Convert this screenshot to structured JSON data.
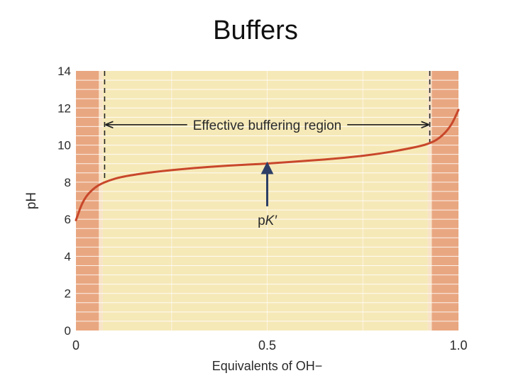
{
  "slide": {
    "title": "Buffers"
  },
  "chart_data": {
    "type": "line",
    "title": "",
    "xlabel": "Equivalents of OH−",
    "ylabel": "pH",
    "xlim": [
      0,
      1
    ],
    "ylim": [
      0,
      14
    ],
    "x_ticks": [
      0,
      0.5,
      1
    ],
    "x_tick_labels": [
      "0",
      "0.5",
      "1.0"
    ],
    "y_ticks": [
      0,
      2,
      4,
      6,
      8,
      10,
      12,
      14
    ],
    "y_tick_labels": [
      "0",
      "2",
      "4",
      "6",
      "8",
      "10",
      "12",
      "14"
    ],
    "grid": "horizontal",
    "series": [
      {
        "x": [
          0,
          0.02,
          0.05,
          0.08,
          0.12,
          0.2,
          0.3,
          0.4,
          0.5,
          0.6,
          0.7,
          0.8,
          0.88,
          0.92,
          0.95,
          0.98,
          1.0
        ],
        "y": [
          5.95,
          7.1,
          7.75,
          8.05,
          8.3,
          8.55,
          8.75,
          8.9,
          9.0,
          9.15,
          9.3,
          9.55,
          9.85,
          10.05,
          10.35,
          11.0,
          11.9
        ]
      }
    ],
    "regions": [
      {
        "type": "non-buffering",
        "x": [
          0,
          0.06
        ],
        "color": "#e9a781"
      },
      {
        "type": "effective-buffering",
        "x": [
          0.07,
          0.92
        ],
        "color": "#f6e9b8"
      },
      {
        "type": "non-buffering",
        "x": [
          0.93,
          1.0
        ],
        "color": "#e9a781"
      }
    ],
    "boundaries": [
      0.075,
      0.925
    ],
    "annotations": {
      "region_label": "Effective buffering region",
      "region_arrow_y": 11.1,
      "pk_label_prefix": "p",
      "pk_label_symbol": "K′",
      "pk_point": {
        "x": 0.5,
        "y": 9.0
      },
      "pk_arrow_start_y": 6.7
    },
    "colors": {
      "curve": "#c8472b",
      "arrow_pk": "#2d3f66",
      "grid": "#ffffff",
      "dashed": "#222222"
    }
  }
}
